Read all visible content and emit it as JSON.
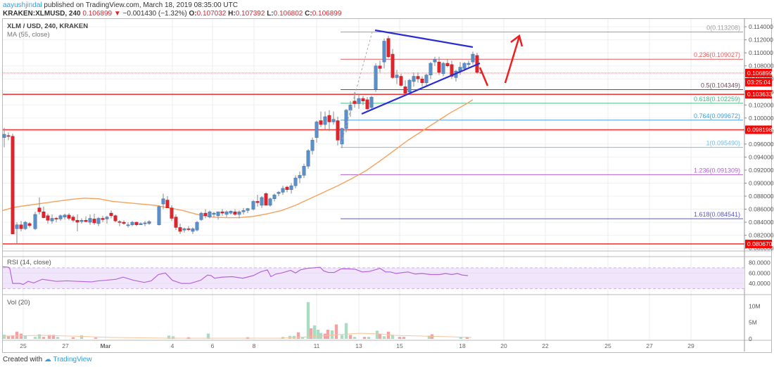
{
  "header": {
    "author": "aayushjindal",
    "published_text": "published on TradingView.com, March 18, 2019 08:35:00 UTC",
    "symbol_line": "KRAKEN:XLMUSD, 240",
    "last": "0.106899",
    "change": "−0.001430 (−1.32%)",
    "change_direction_icon": "down-triangle-icon",
    "o_label": "O:",
    "o": "0.107032",
    "h_label": "H:",
    "h": "0.107392",
    "l_label": "L:",
    "l": "0.106802",
    "c_label": "C:",
    "c": "0.106899"
  },
  "price_pane": {
    "title": "XLM / USD, 240, KRAKEN",
    "ma_label": "MA (55, close)"
  },
  "rsi_pane": {
    "label": "RSI (14, close)"
  },
  "vol_pane": {
    "label": "Vol (20)"
  },
  "footer": {
    "created_with": "Created with",
    "brand": "TradingView"
  },
  "colors": {
    "up": "#5b8fc9",
    "down": "#e0242c",
    "ma": "#f5a25d",
    "trendline": "#2b2bd6",
    "rsi": "#b565d8",
    "rsi_band": "#f1e5fb",
    "hline": "#f03c3c"
  },
  "chart_data": [
    {
      "type": "candlestick",
      "title": "XLM / USD, 240, KRAKEN",
      "xlabel": "",
      "ylabel": "",
      "x_ticks": [
        "25",
        "27",
        "Mar",
        "4",
        "6",
        "8",
        "11",
        "13",
        "15",
        "18",
        "20",
        "22",
        "25",
        "27",
        "29"
      ],
      "y_ticks": [
        "0.114000",
        "0.112000",
        "0.110000",
        "0.108000",
        "0.106000",
        "0.104000",
        "0.102000",
        "0.100000",
        "0.098000",
        "0.096000",
        "0.094000",
        "0.092000",
        "0.090000",
        "0.088000",
        "0.086000",
        "0.084000",
        "0.082000",
        "0.080000"
      ],
      "ylim": [
        0.0798,
        0.1152
      ],
      "price_labels": {
        "current_price": "0.106899",
        "countdown": "03:25:04",
        "hline_1": "0.103633",
        "hline_2": "0.098198",
        "hline_3": "0.080670"
      },
      "horizontal_lines": [
        0.103633,
        0.098198,
        0.08067
      ],
      "fibonacci": [
        {
          "level": "0",
          "value": "0.113208",
          "color": "#9e9e9e"
        },
        {
          "level": "0.236",
          "value": "0.109027",
          "color": "#e45c5c"
        },
        {
          "level": "0.5",
          "value": "0.104349",
          "color": "#6d4a5e"
        },
        {
          "level": "0.618",
          "value": "0.102259",
          "color": "#3dbf84"
        },
        {
          "level": "0.764",
          "value": "0.099672",
          "color": "#3aa1d8"
        },
        {
          "level": "1",
          "value": "0.095490",
          "color": "#6fc3e9"
        },
        {
          "level": "1.236",
          "value": "0.091309",
          "color": "#b460d6"
        },
        {
          "level": "1.618",
          "value": "0.084541",
          "color": "#5656c8"
        }
      ],
      "annotations": [
        "symmetrical triangle trendlines (blue)",
        "red arrow dip then up toward 0.113"
      ],
      "indicator": "MA (55, close)"
    },
    {
      "type": "line",
      "title": "RSI (14, close)",
      "y_ticks": [
        "80.0000",
        "60.0000",
        "40.0000"
      ],
      "ylim": [
        20,
        90
      ],
      "band": [
        30,
        70
      ]
    },
    {
      "type": "bar",
      "title": "Vol (20)",
      "y_ticks": [
        "10M",
        "5M",
        "0"
      ]
    }
  ]
}
